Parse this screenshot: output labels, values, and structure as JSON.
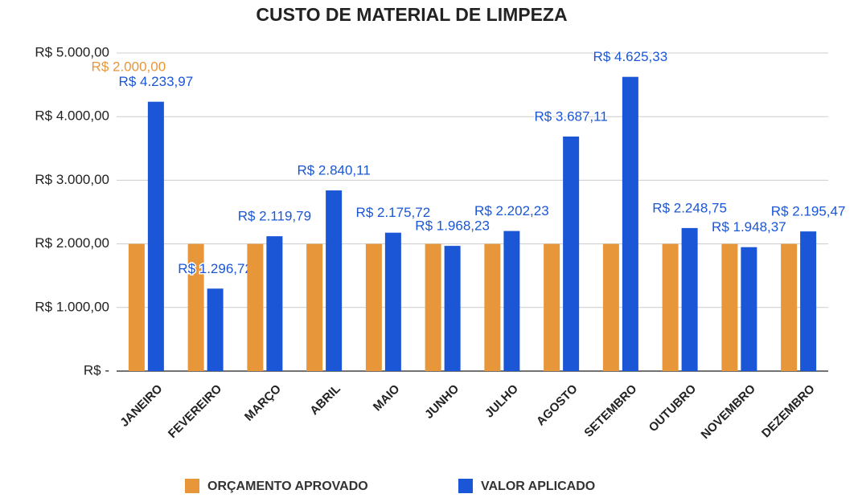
{
  "chart_data": {
    "type": "bar",
    "title": "CUSTO DE MATERIAL DE LIMPEZA",
    "categories": [
      "JANEIRO",
      "FEVEREIRO",
      "MARÇO",
      "ABRIL",
      "MAIO",
      "JUNHO",
      "JULHO",
      "AGOSTO",
      "SETEMBRO",
      "OUTUBRO",
      "NOVEMBRO",
      "DEZEMBRO"
    ],
    "series": [
      {
        "name": "ORÇAMENTO APROVADO",
        "color": "#e8963a",
        "values": [
          2000,
          2000,
          2000,
          2000,
          2000,
          2000,
          2000,
          2000,
          2000,
          2000,
          2000,
          2000
        ],
        "value_labels": [
          "R$  2.000,00",
          null,
          null,
          null,
          null,
          null,
          null,
          null,
          null,
          null,
          null,
          null
        ]
      },
      {
        "name": "VALOR APLICADO",
        "color": "#1a56d6",
        "values": [
          4233.97,
          1296.72,
          2119.79,
          2840.11,
          2175.72,
          1968.23,
          2202.23,
          3687.11,
          4625.33,
          2248.75,
          1948.37,
          2195.47
        ],
        "value_labels": [
          "R$  4.233,97",
          "R$  1.296,72",
          "R$  2.119,79",
          "R$  2.840,11",
          "R$  2.175,72",
          "R$  1.968,23",
          "R$  2.202,23",
          "R$  3.687,11",
          "R$  4.625,33",
          "R$  2.248,75",
          "R$  1.948,37",
          "R$  2.195,47"
        ]
      }
    ],
    "ylim": [
      0,
      5000
    ],
    "yticks": [
      {
        "value": 0,
        "label": "R$  -"
      },
      {
        "value": 1000,
        "label": "R$  1.000,00"
      },
      {
        "value": 2000,
        "label": "R$  2.000,00"
      },
      {
        "value": 3000,
        "label": "R$  3.000,00"
      },
      {
        "value": 4000,
        "label": "R$  4.000,00"
      },
      {
        "value": 5000,
        "label": "R$  5.000,00"
      }
    ],
    "grid": true
  }
}
